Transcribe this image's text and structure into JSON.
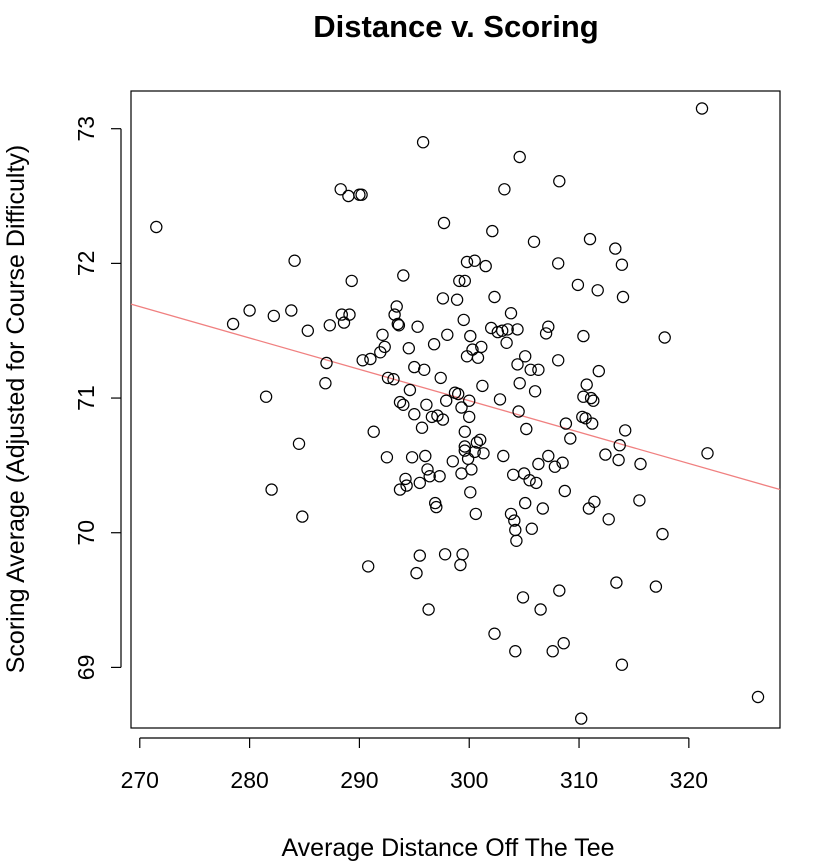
{
  "chart_data": {
    "type": "scatter",
    "title": "Distance v. Scoring",
    "xlabel": "Average Distance Off The Tee",
    "ylabel": "Scoring Average (Adjusted for Course Difficulty)",
    "xlim": [
      269.2,
      328.3
    ],
    "ylim": [
      68.55,
      73.28
    ],
    "xticks": [
      "270",
      "280",
      "290",
      "300",
      "310",
      "320"
    ],
    "yticks": [
      "69",
      "70",
      "71",
      "72",
      "73"
    ],
    "grid": false,
    "legend": "none",
    "point_color": "#000000",
    "fit_line_color": "#f08080",
    "fit_line": {
      "slope": -0.0233,
      "intercept": 77.97
    },
    "points": [
      [
        271.5,
        72.27
      ],
      [
        278.5,
        71.55
      ],
      [
        280.0,
        71.65
      ],
      [
        281.5,
        71.01
      ],
      [
        282.0,
        70.32
      ],
      [
        282.2,
        71.61
      ],
      [
        283.8,
        71.65
      ],
      [
        284.1,
        72.02
      ],
      [
        284.5,
        70.66
      ],
      [
        284.8,
        70.12
      ],
      [
        285.3,
        71.5
      ],
      [
        286.9,
        71.11
      ],
      [
        287.0,
        71.26
      ],
      [
        287.3,
        71.54
      ],
      [
        288.3,
        72.55
      ],
      [
        288.4,
        71.62
      ],
      [
        288.6,
        71.56
      ],
      [
        289.0,
        72.5
      ],
      [
        289.1,
        71.62
      ],
      [
        289.3,
        71.87
      ],
      [
        290.0,
        72.51
      ],
      [
        290.2,
        72.51
      ],
      [
        290.3,
        71.28
      ],
      [
        290.8,
        69.75
      ],
      [
        291.0,
        71.29
      ],
      [
        291.3,
        70.75
      ],
      [
        291.9,
        71.34
      ],
      [
        292.1,
        71.47
      ],
      [
        292.3,
        71.38
      ],
      [
        292.5,
        70.56
      ],
      [
        292.6,
        71.15
      ],
      [
        293.1,
        71.14
      ],
      [
        293.2,
        71.62
      ],
      [
        293.4,
        71.68
      ],
      [
        293.5,
        71.55
      ],
      [
        293.6,
        71.54
      ],
      [
        293.7,
        70.97
      ],
      [
        293.7,
        70.32
      ],
      [
        294.0,
        71.91
      ],
      [
        294.0,
        70.95
      ],
      [
        294.2,
        70.4
      ],
      [
        294.3,
        70.35
      ],
      [
        294.5,
        71.37
      ],
      [
        294.6,
        71.06
      ],
      [
        294.8,
        70.56
      ],
      [
        295.0,
        71.23
      ],
      [
        295.0,
        70.88
      ],
      [
        295.2,
        69.7
      ],
      [
        295.3,
        71.53
      ],
      [
        295.5,
        69.83
      ],
      [
        295.5,
        70.37
      ],
      [
        295.7,
        70.78
      ],
      [
        295.8,
        72.9
      ],
      [
        295.9,
        71.21
      ],
      [
        296.0,
        70.57
      ],
      [
        296.1,
        70.95
      ],
      [
        296.2,
        70.47
      ],
      [
        296.3,
        69.43
      ],
      [
        296.4,
        70.42
      ],
      [
        296.6,
        70.86
      ],
      [
        296.8,
        71.4
      ],
      [
        296.9,
        70.22
      ],
      [
        297.0,
        70.19
      ],
      [
        297.1,
        70.87
      ],
      [
        297.3,
        70.42
      ],
      [
        297.4,
        71.15
      ],
      [
        297.6,
        71.74
      ],
      [
        297.6,
        70.84
      ],
      [
        297.7,
        72.3
      ],
      [
        297.8,
        69.84
      ],
      [
        297.9,
        70.98
      ],
      [
        298.0,
        71.47
      ],
      [
        298.5,
        70.53
      ],
      [
        298.7,
        71.04
      ],
      [
        298.9,
        71.73
      ],
      [
        299.0,
        71.03
      ],
      [
        299.1,
        71.87
      ],
      [
        299.2,
        69.76
      ],
      [
        299.3,
        70.44
      ],
      [
        299.3,
        70.93
      ],
      [
        299.4,
        69.84
      ],
      [
        299.5,
        71.58
      ],
      [
        299.6,
        70.64
      ],
      [
        299.6,
        70.61
      ],
      [
        299.6,
        71.87
      ],
      [
        299.6,
        70.75
      ],
      [
        299.8,
        72.01
      ],
      [
        299.8,
        71.31
      ],
      [
        299.9,
        70.55
      ],
      [
        300.0,
        70.98
      ],
      [
        300.0,
        70.86
      ],
      [
        300.1,
        71.46
      ],
      [
        300.1,
        70.3
      ],
      [
        300.2,
        70.47
      ],
      [
        300.3,
        71.36
      ],
      [
        300.5,
        72.02
      ],
      [
        300.5,
        70.6
      ],
      [
        300.6,
        70.14
      ],
      [
        300.7,
        70.67
      ],
      [
        300.8,
        71.3
      ],
      [
        301.0,
        70.69
      ],
      [
        301.1,
        71.38
      ],
      [
        301.2,
        71.09
      ],
      [
        301.3,
        70.59
      ],
      [
        301.5,
        71.98
      ],
      [
        302.0,
        71.52
      ],
      [
        302.1,
        72.24
      ],
      [
        302.3,
        71.75
      ],
      [
        302.3,
        69.25
      ],
      [
        302.6,
        71.49
      ],
      [
        302.8,
        70.99
      ],
      [
        303.0,
        71.5
      ],
      [
        303.1,
        70.57
      ],
      [
        303.2,
        72.55
      ],
      [
        303.4,
        71.41
      ],
      [
        303.5,
        71.51
      ],
      [
        303.8,
        71.63
      ],
      [
        303.8,
        70.14
      ],
      [
        304.0,
        70.43
      ],
      [
        304.1,
        70.09
      ],
      [
        304.2,
        70.02
      ],
      [
        304.2,
        69.12
      ],
      [
        304.3,
        69.94
      ],
      [
        304.4,
        71.51
      ],
      [
        304.4,
        71.25
      ],
      [
        304.5,
        70.9
      ],
      [
        304.6,
        72.79
      ],
      [
        304.6,
        71.11
      ],
      [
        304.9,
        69.52
      ],
      [
        305.0,
        70.44
      ],
      [
        305.1,
        71.31
      ],
      [
        305.1,
        70.22
      ],
      [
        305.2,
        70.77
      ],
      [
        305.5,
        70.39
      ],
      [
        305.6,
        71.21
      ],
      [
        305.7,
        70.03
      ],
      [
        305.9,
        72.16
      ],
      [
        306.0,
        71.05
      ],
      [
        306.1,
        70.37
      ],
      [
        306.3,
        71.21
      ],
      [
        306.3,
        70.51
      ],
      [
        306.5,
        69.43
      ],
      [
        306.7,
        70.18
      ],
      [
        307.0,
        71.48
      ],
      [
        307.2,
        71.53
      ],
      [
        307.2,
        70.57
      ],
      [
        307.6,
        69.12
      ],
      [
        307.8,
        70.49
      ],
      [
        308.1,
        71.28
      ],
      [
        308.1,
        72.0
      ],
      [
        308.2,
        72.61
      ],
      [
        308.2,
        69.57
      ],
      [
        308.5,
        70.52
      ],
      [
        308.6,
        69.18
      ],
      [
        308.7,
        70.31
      ],
      [
        308.8,
        70.81
      ],
      [
        309.2,
        70.7
      ],
      [
        309.9,
        71.84
      ],
      [
        310.2,
        68.62
      ],
      [
        310.3,
        70.86
      ],
      [
        310.4,
        71.46
      ],
      [
        310.4,
        71.01
      ],
      [
        310.6,
        70.85
      ],
      [
        310.7,
        71.1
      ],
      [
        310.9,
        70.18
      ],
      [
        311.0,
        72.18
      ],
      [
        311.1,
        71.0
      ],
      [
        311.2,
        70.81
      ],
      [
        311.3,
        70.98
      ],
      [
        311.4,
        70.23
      ],
      [
        311.7,
        71.8
      ],
      [
        311.8,
        71.2
      ],
      [
        312.4,
        70.58
      ],
      [
        312.7,
        70.1
      ],
      [
        313.3,
        72.11
      ],
      [
        313.4,
        69.63
      ],
      [
        313.6,
        70.54
      ],
      [
        313.7,
        70.65
      ],
      [
        313.9,
        71.99
      ],
      [
        313.9,
        69.02
      ],
      [
        314.0,
        71.75
      ],
      [
        314.2,
        70.76
      ],
      [
        315.5,
        70.24
      ],
      [
        315.6,
        70.51
      ],
      [
        317.0,
        69.6
      ],
      [
        317.6,
        69.99
      ],
      [
        317.8,
        71.45
      ],
      [
        321.2,
        73.15
      ],
      [
        321.7,
        70.59
      ],
      [
        326.3,
        68.78
      ]
    ]
  }
}
